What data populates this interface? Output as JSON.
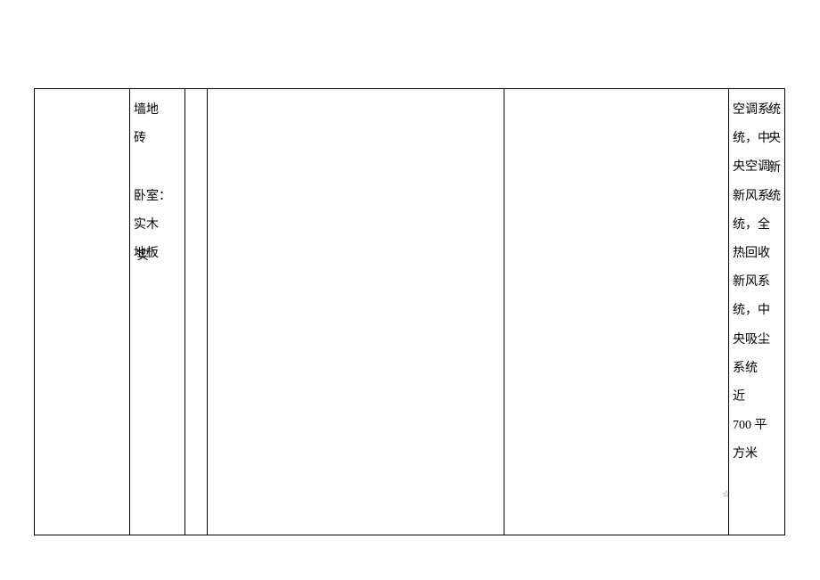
{
  "table": {
    "columns": {
      "col2": {
        "lines": [
          {
            "text": "墙地"
          },
          {
            "text": "砖"
          },
          {
            "text": " "
          },
          {
            "text": "卧室："
          },
          {
            "text": "实木"
          },
          {
            "text": "地板"
          }
        ]
      },
      "col6": {
        "lines": [
          {
            "text": "空调系"
          },
          {
            "text": "统，中"
          },
          {
            "text": "央空调"
          },
          {
            "text": "新风系"
          },
          {
            "text": "统，全"
          },
          {
            "text": "热回收"
          },
          {
            "text": "新风系"
          },
          {
            "text": "统，中"
          },
          {
            "text": "央吸尘"
          },
          {
            "text": "系统"
          },
          {
            "text": "近"
          },
          {
            "text": "700 平"
          },
          {
            "text": "方米"
          }
        ]
      }
    }
  },
  "overflow": {
    "right_truncated": {
      "r1": "统",
      "r2": "央",
      "r3": "新",
      "r4": "统"
    },
    "col2_suffix": "实"
  },
  "star": "☆"
}
